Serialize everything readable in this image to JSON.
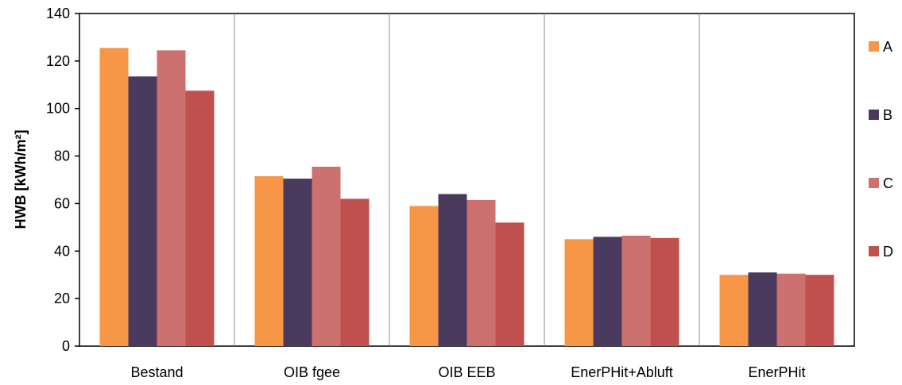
{
  "chart_data": {
    "type": "bar",
    "categories": [
      "Bestand",
      "OIB fgee",
      "OIB EEB",
      "EnerPHit+Abluft",
      "EnerPHit"
    ],
    "series": [
      {
        "name": "A",
        "color": "#F79646",
        "values": [
          125.5,
          71.5,
          59,
          45,
          30
        ]
      },
      {
        "name": "B",
        "color": "#4A3A5E",
        "values": [
          113.5,
          70.5,
          64,
          46,
          31
        ]
      },
      {
        "name": "C",
        "color": "#CD7070",
        "values": [
          124.5,
          75.5,
          61.5,
          46.5,
          30.5
        ]
      },
      {
        "name": "D",
        "color": "#C0504D",
        "values": [
          107.5,
          62,
          52,
          45.5,
          30
        ]
      }
    ],
    "ylabel": "HWB [kWh/m²]",
    "xlabel": "",
    "ylim": [
      0,
      140
    ],
    "yticks": [
      0,
      20,
      40,
      60,
      80,
      100,
      120,
      140
    ],
    "grid": "vertical separators between categories",
    "legend": "right"
  }
}
